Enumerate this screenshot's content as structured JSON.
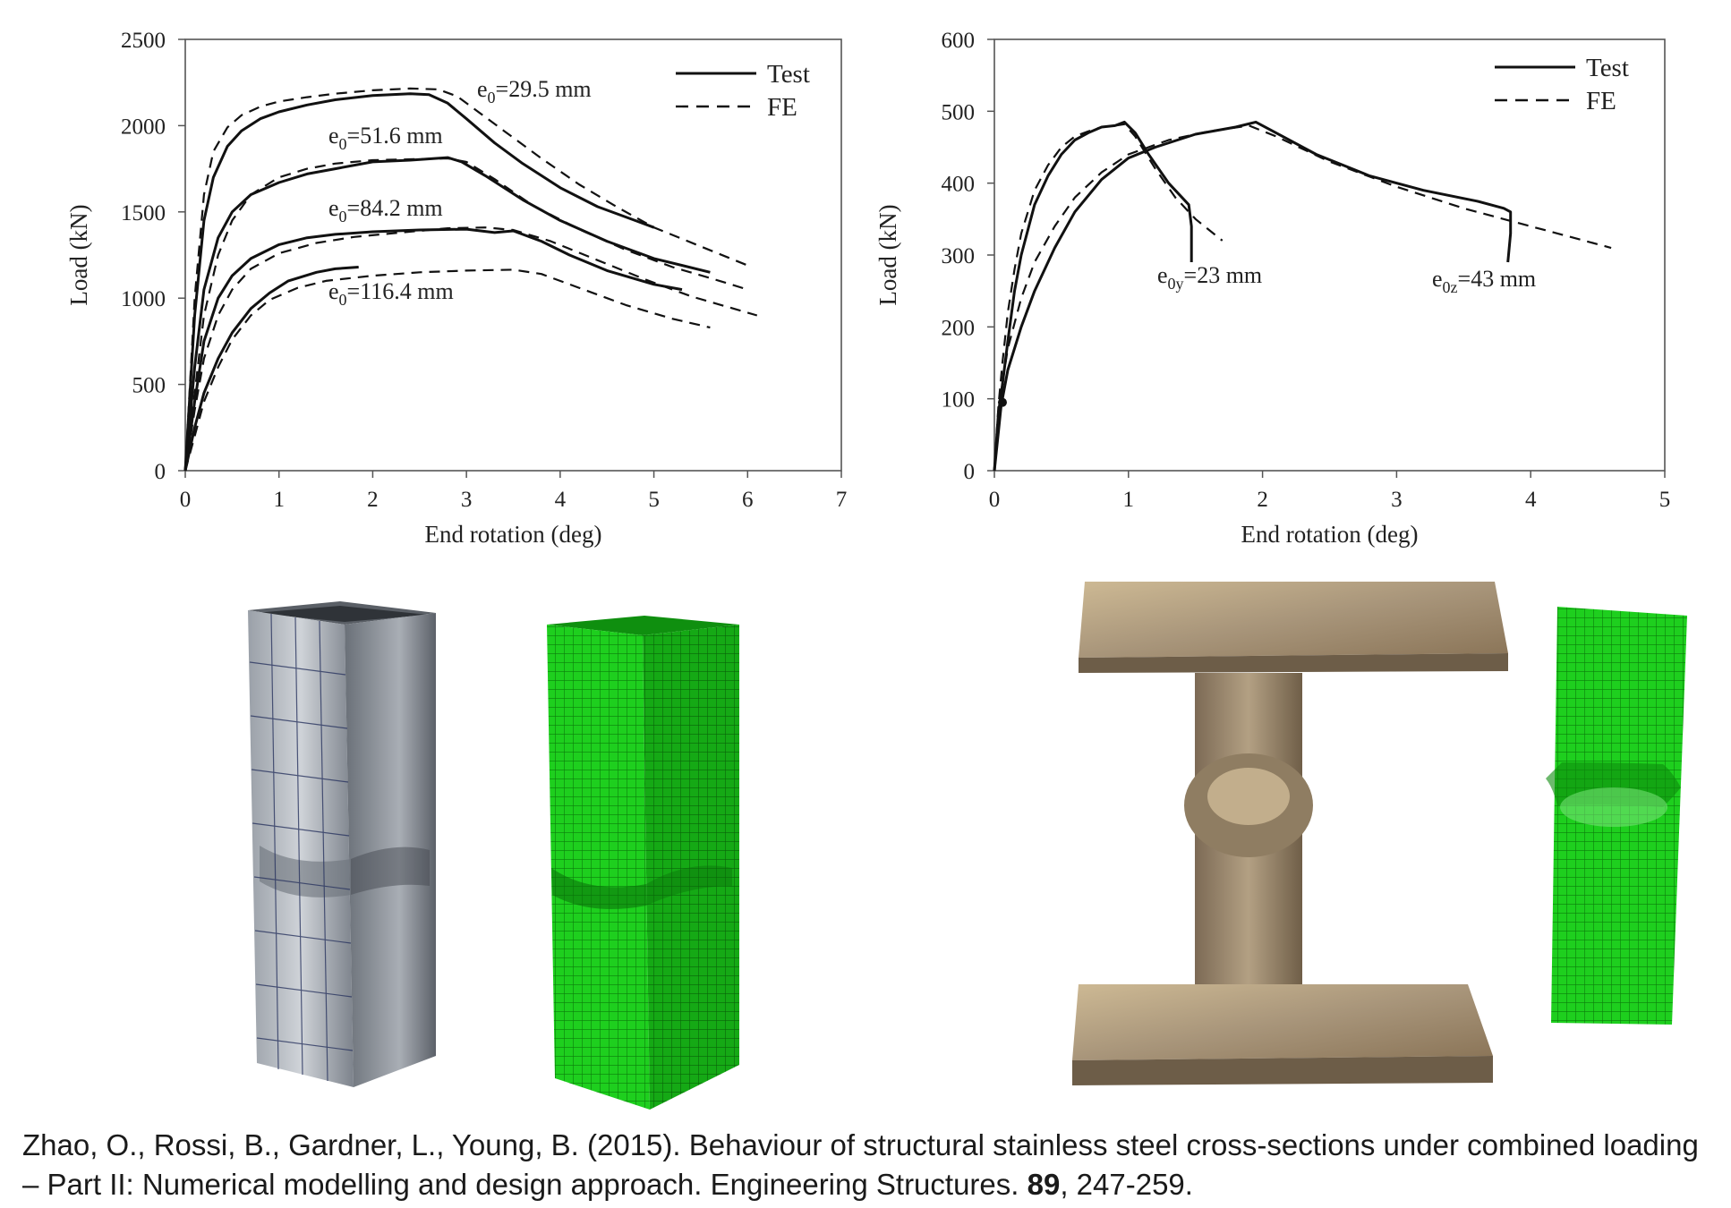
{
  "colors": {
    "line": "#111111",
    "mesh_green": "#19c619",
    "mesh_dark": "#0a7a0a",
    "steel_light": "#b8bcc2",
    "steel_dark": "#4a4f57",
    "bronze_light": "#c9b48f",
    "bronze_dark": "#7c6a4e"
  },
  "chart_data": [
    {
      "type": "line",
      "title": "",
      "xlabel": "End rotation (deg)",
      "ylabel": "Load (kN)",
      "xlim": [
        0,
        7
      ],
      "ylim": [
        0,
        2500
      ],
      "xticks": [
        "0",
        "1",
        "2",
        "3",
        "4",
        "5",
        "6",
        "7"
      ],
      "yticks": [
        "0",
        "500",
        "1000",
        "1500",
        "2000",
        "2500"
      ],
      "grid": false,
      "legend_position": "top-right",
      "legend": [
        "Test",
        "FE"
      ],
      "annotations": [
        {
          "text_main": "e",
          "text_sub": "0",
          "text_rest": "=29.5 mm"
        },
        {
          "text_main": "e",
          "text_sub": "0",
          "text_rest": "=51.6 mm"
        },
        {
          "text_main": "e",
          "text_sub": "0",
          "text_rest": "=84.2 mm"
        },
        {
          "text_main": "e",
          "text_sub": "0",
          "text_rest": "=116.4 mm"
        }
      ],
      "series": [
        {
          "name": "Test",
          "group": "e0=29.5 mm",
          "style": "solid",
          "x": [
            0,
            0.1,
            0.2,
            0.3,
            0.45,
            0.6,
            0.8,
            1.0,
            1.3,
            1.6,
            2.0,
            2.4,
            2.6,
            2.8,
            3.0,
            3.3,
            3.6,
            4.0,
            4.4,
            4.8,
            5.0
          ],
          "y": [
            0,
            900,
            1450,
            1700,
            1880,
            1970,
            2040,
            2080,
            2120,
            2150,
            2175,
            2185,
            2180,
            2130,
            2040,
            1900,
            1780,
            1640,
            1530,
            1450,
            1410
          ]
        },
        {
          "name": "FE",
          "group": "e0=29.5 mm",
          "style": "dashed",
          "x": [
            0,
            0.1,
            0.2,
            0.3,
            0.45,
            0.6,
            0.8,
            1.0,
            1.3,
            1.6,
            2.0,
            2.4,
            2.7,
            2.9,
            3.1,
            3.4,
            3.8,
            4.2,
            4.6,
            5.0,
            5.5,
            6.0
          ],
          "y": [
            0,
            1000,
            1600,
            1850,
            1990,
            2060,
            2110,
            2140,
            2165,
            2185,
            2205,
            2215,
            2210,
            2170,
            2090,
            1970,
            1810,
            1660,
            1530,
            1410,
            1300,
            1190
          ]
        },
        {
          "name": "Test",
          "group": "e0=51.6 mm",
          "style": "solid",
          "x": [
            0,
            0.1,
            0.2,
            0.35,
            0.5,
            0.7,
            1.0,
            1.3,
            1.6,
            2.0,
            2.4,
            2.8,
            2.95,
            3.2,
            3.6,
            4.0,
            4.5,
            5.0,
            5.6
          ],
          "y": [
            0,
            600,
            1050,
            1350,
            1500,
            1600,
            1670,
            1720,
            1750,
            1790,
            1800,
            1815,
            1790,
            1710,
            1570,
            1450,
            1330,
            1230,
            1150
          ]
        },
        {
          "name": "FE",
          "group": "e0=51.6 mm",
          "style": "dashed",
          "x": [
            0,
            0.1,
            0.2,
            0.35,
            0.5,
            0.7,
            1.0,
            1.3,
            1.6,
            2.0,
            2.4,
            2.8,
            3.0,
            3.3,
            3.7,
            4.2,
            4.7,
            5.2,
            5.7,
            6.0
          ],
          "y": [
            0,
            450,
            900,
            1250,
            1450,
            1600,
            1700,
            1750,
            1780,
            1800,
            1805,
            1810,
            1790,
            1690,
            1540,
            1400,
            1280,
            1180,
            1100,
            1050
          ]
        },
        {
          "name": "Test",
          "group": "e0=84.2 mm",
          "style": "solid",
          "x": [
            0,
            0.1,
            0.2,
            0.35,
            0.5,
            0.7,
            1.0,
            1.3,
            1.6,
            2.0,
            2.5,
            3.0,
            3.3,
            3.5,
            3.8,
            4.1,
            4.5,
            5.0,
            5.3
          ],
          "y": [
            0,
            400,
            750,
            1000,
            1130,
            1230,
            1310,
            1350,
            1370,
            1385,
            1395,
            1400,
            1380,
            1390,
            1330,
            1250,
            1160,
            1080,
            1050
          ]
        },
        {
          "name": "FE",
          "group": "e0=84.2 mm",
          "style": "dashed",
          "x": [
            0,
            0.1,
            0.2,
            0.35,
            0.5,
            0.7,
            1.0,
            1.4,
            1.8,
            2.3,
            2.8,
            3.2,
            3.5,
            3.9,
            4.4,
            4.9,
            5.4,
            6.1
          ],
          "y": [
            0,
            350,
            650,
            900,
            1050,
            1170,
            1260,
            1320,
            1355,
            1380,
            1405,
            1410,
            1395,
            1330,
            1220,
            1110,
            1010,
            900
          ]
        },
        {
          "name": "Test",
          "group": "e0=116.4 mm",
          "style": "solid",
          "x": [
            0,
            0.1,
            0.2,
            0.35,
            0.5,
            0.7,
            0.9,
            1.1,
            1.4,
            1.6,
            1.85
          ],
          "y": [
            0,
            250,
            450,
            650,
            800,
            940,
            1030,
            1100,
            1150,
            1170,
            1180
          ]
        },
        {
          "name": "FE",
          "group": "e0=116.4 mm",
          "style": "dashed",
          "x": [
            0,
            0.1,
            0.2,
            0.35,
            0.5,
            0.7,
            0.9,
            1.2,
            1.5,
            2.0,
            2.5,
            3.0,
            3.5,
            3.8,
            4.2,
            4.7,
            5.2,
            5.6
          ],
          "y": [
            0,
            200,
            400,
            600,
            760,
            900,
            990,
            1060,
            1100,
            1130,
            1150,
            1160,
            1165,
            1140,
            1060,
            960,
            880,
            830
          ]
        }
      ]
    },
    {
      "type": "line",
      "title": "",
      "xlabel": "End rotation (deg)",
      "ylabel": "Load (kN)",
      "xlim": [
        0,
        5
      ],
      "ylim": [
        0,
        600
      ],
      "xticks": [
        "0",
        "1",
        "2",
        "3",
        "4",
        "5"
      ],
      "yticks": [
        "0",
        "100",
        "200",
        "300",
        "400",
        "500",
        "600"
      ],
      "grid": false,
      "legend_position": "top-right",
      "legend": [
        "Test",
        "FE"
      ],
      "annotations": [
        {
          "text_main": "e",
          "text_sub": "0y",
          "text_rest": "=23 mm"
        },
        {
          "text_main": "e",
          "text_sub": "0z",
          "text_rest": "=43 mm"
        }
      ],
      "series": [
        {
          "name": "Test",
          "group": "e0y=23 mm",
          "style": "solid",
          "x": [
            0,
            0.03,
            0.06,
            0.1,
            0.15,
            0.2,
            0.3,
            0.4,
            0.5,
            0.6,
            0.7,
            0.8,
            0.9,
            0.97,
            1.05,
            1.15,
            1.3,
            1.45,
            1.47,
            1.47
          ],
          "y": [
            0,
            80,
            120,
            180,
            250,
            300,
            370,
            410,
            440,
            460,
            470,
            478,
            480,
            485,
            470,
            440,
            400,
            370,
            340,
            290
          ]
        },
        {
          "name": "FE",
          "group": "e0y=23 mm",
          "style": "dashed",
          "x": [
            0,
            0.03,
            0.06,
            0.1,
            0.15,
            0.2,
            0.3,
            0.4,
            0.5,
            0.6,
            0.7,
            0.8,
            0.9,
            0.97,
            1.05,
            1.2,
            1.35,
            1.5,
            1.7
          ],
          "y": [
            0,
            90,
            150,
            220,
            280,
            330,
            390,
            425,
            450,
            465,
            472,
            478,
            480,
            482,
            465,
            420,
            380,
            350,
            320
          ]
        },
        {
          "name": "Test",
          "group": "e0z=43 mm",
          "style": "solid",
          "x": [
            0,
            0.05,
            0.1,
            0.2,
            0.3,
            0.45,
            0.6,
            0.8,
            1.0,
            1.2,
            1.5,
            1.8,
            1.95,
            2.1,
            2.4,
            2.8,
            3.2,
            3.6,
            3.8,
            3.85,
            3.85,
            3.83
          ],
          "y": [
            0,
            90,
            140,
            200,
            250,
            310,
            360,
            405,
            435,
            450,
            468,
            478,
            485,
            470,
            440,
            410,
            390,
            375,
            365,
            360,
            330,
            290
          ]
        },
        {
          "name": "FE",
          "group": "e0z=43 mm",
          "style": "dashed",
          "x": [
            0,
            0.05,
            0.1,
            0.2,
            0.3,
            0.45,
            0.6,
            0.8,
            1.0,
            1.3,
            1.6,
            1.9,
            2.1,
            2.5,
            3.0,
            3.5,
            4.0,
            4.6
          ],
          "y": [
            0,
            110,
            170,
            240,
            290,
            340,
            380,
            415,
            440,
            460,
            472,
            480,
            465,
            430,
            395,
            365,
            340,
            310
          ]
        }
      ]
    }
  ],
  "citation": {
    "text_before": "Zhao, O., Rossi, B., Gardner, L., Young, B. (2015). Behaviour of structural stainless steel cross-sections under combined loading – Part II: Numerical modelling and design approach. Engineering Structures. ",
    "volume": "89",
    "text_after": ", 247-259."
  }
}
